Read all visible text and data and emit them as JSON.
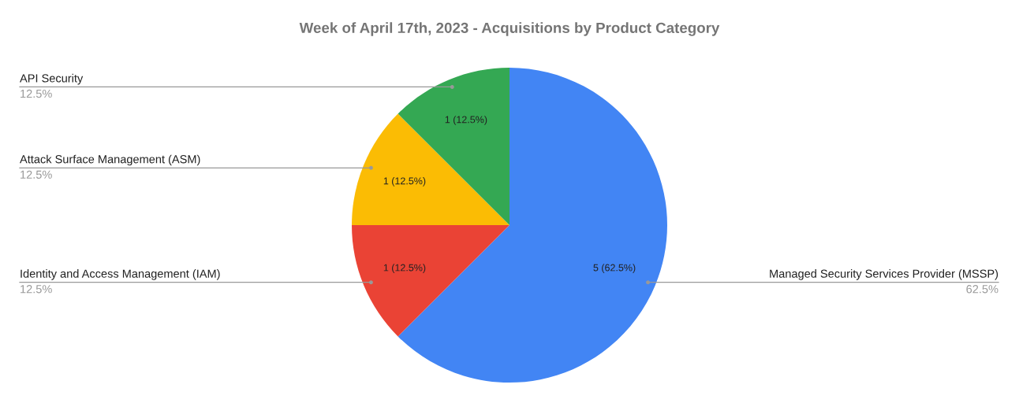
{
  "chart_data": {
    "type": "pie",
    "title": "Week of April 17th, 2023 - Acquisitions by Product Category",
    "categories": [
      "Managed Security Services Provider (MSSP)",
      "Identity and Access Management (IAM)",
      "Attack Surface Management (ASM)",
      "API Security"
    ],
    "values": [
      5,
      1,
      1,
      1
    ],
    "colors": [
      "#4285f4",
      "#ea4335",
      "#fbbc04",
      "#34a853"
    ],
    "value_labels": [
      "5 (62.5%)",
      "1 (12.5%)",
      "1 (12.5%)",
      "1 (12.5%)"
    ],
    "annotations": [
      "62.5%",
      "12.5%",
      "12.5%",
      "12.5%"
    ]
  }
}
